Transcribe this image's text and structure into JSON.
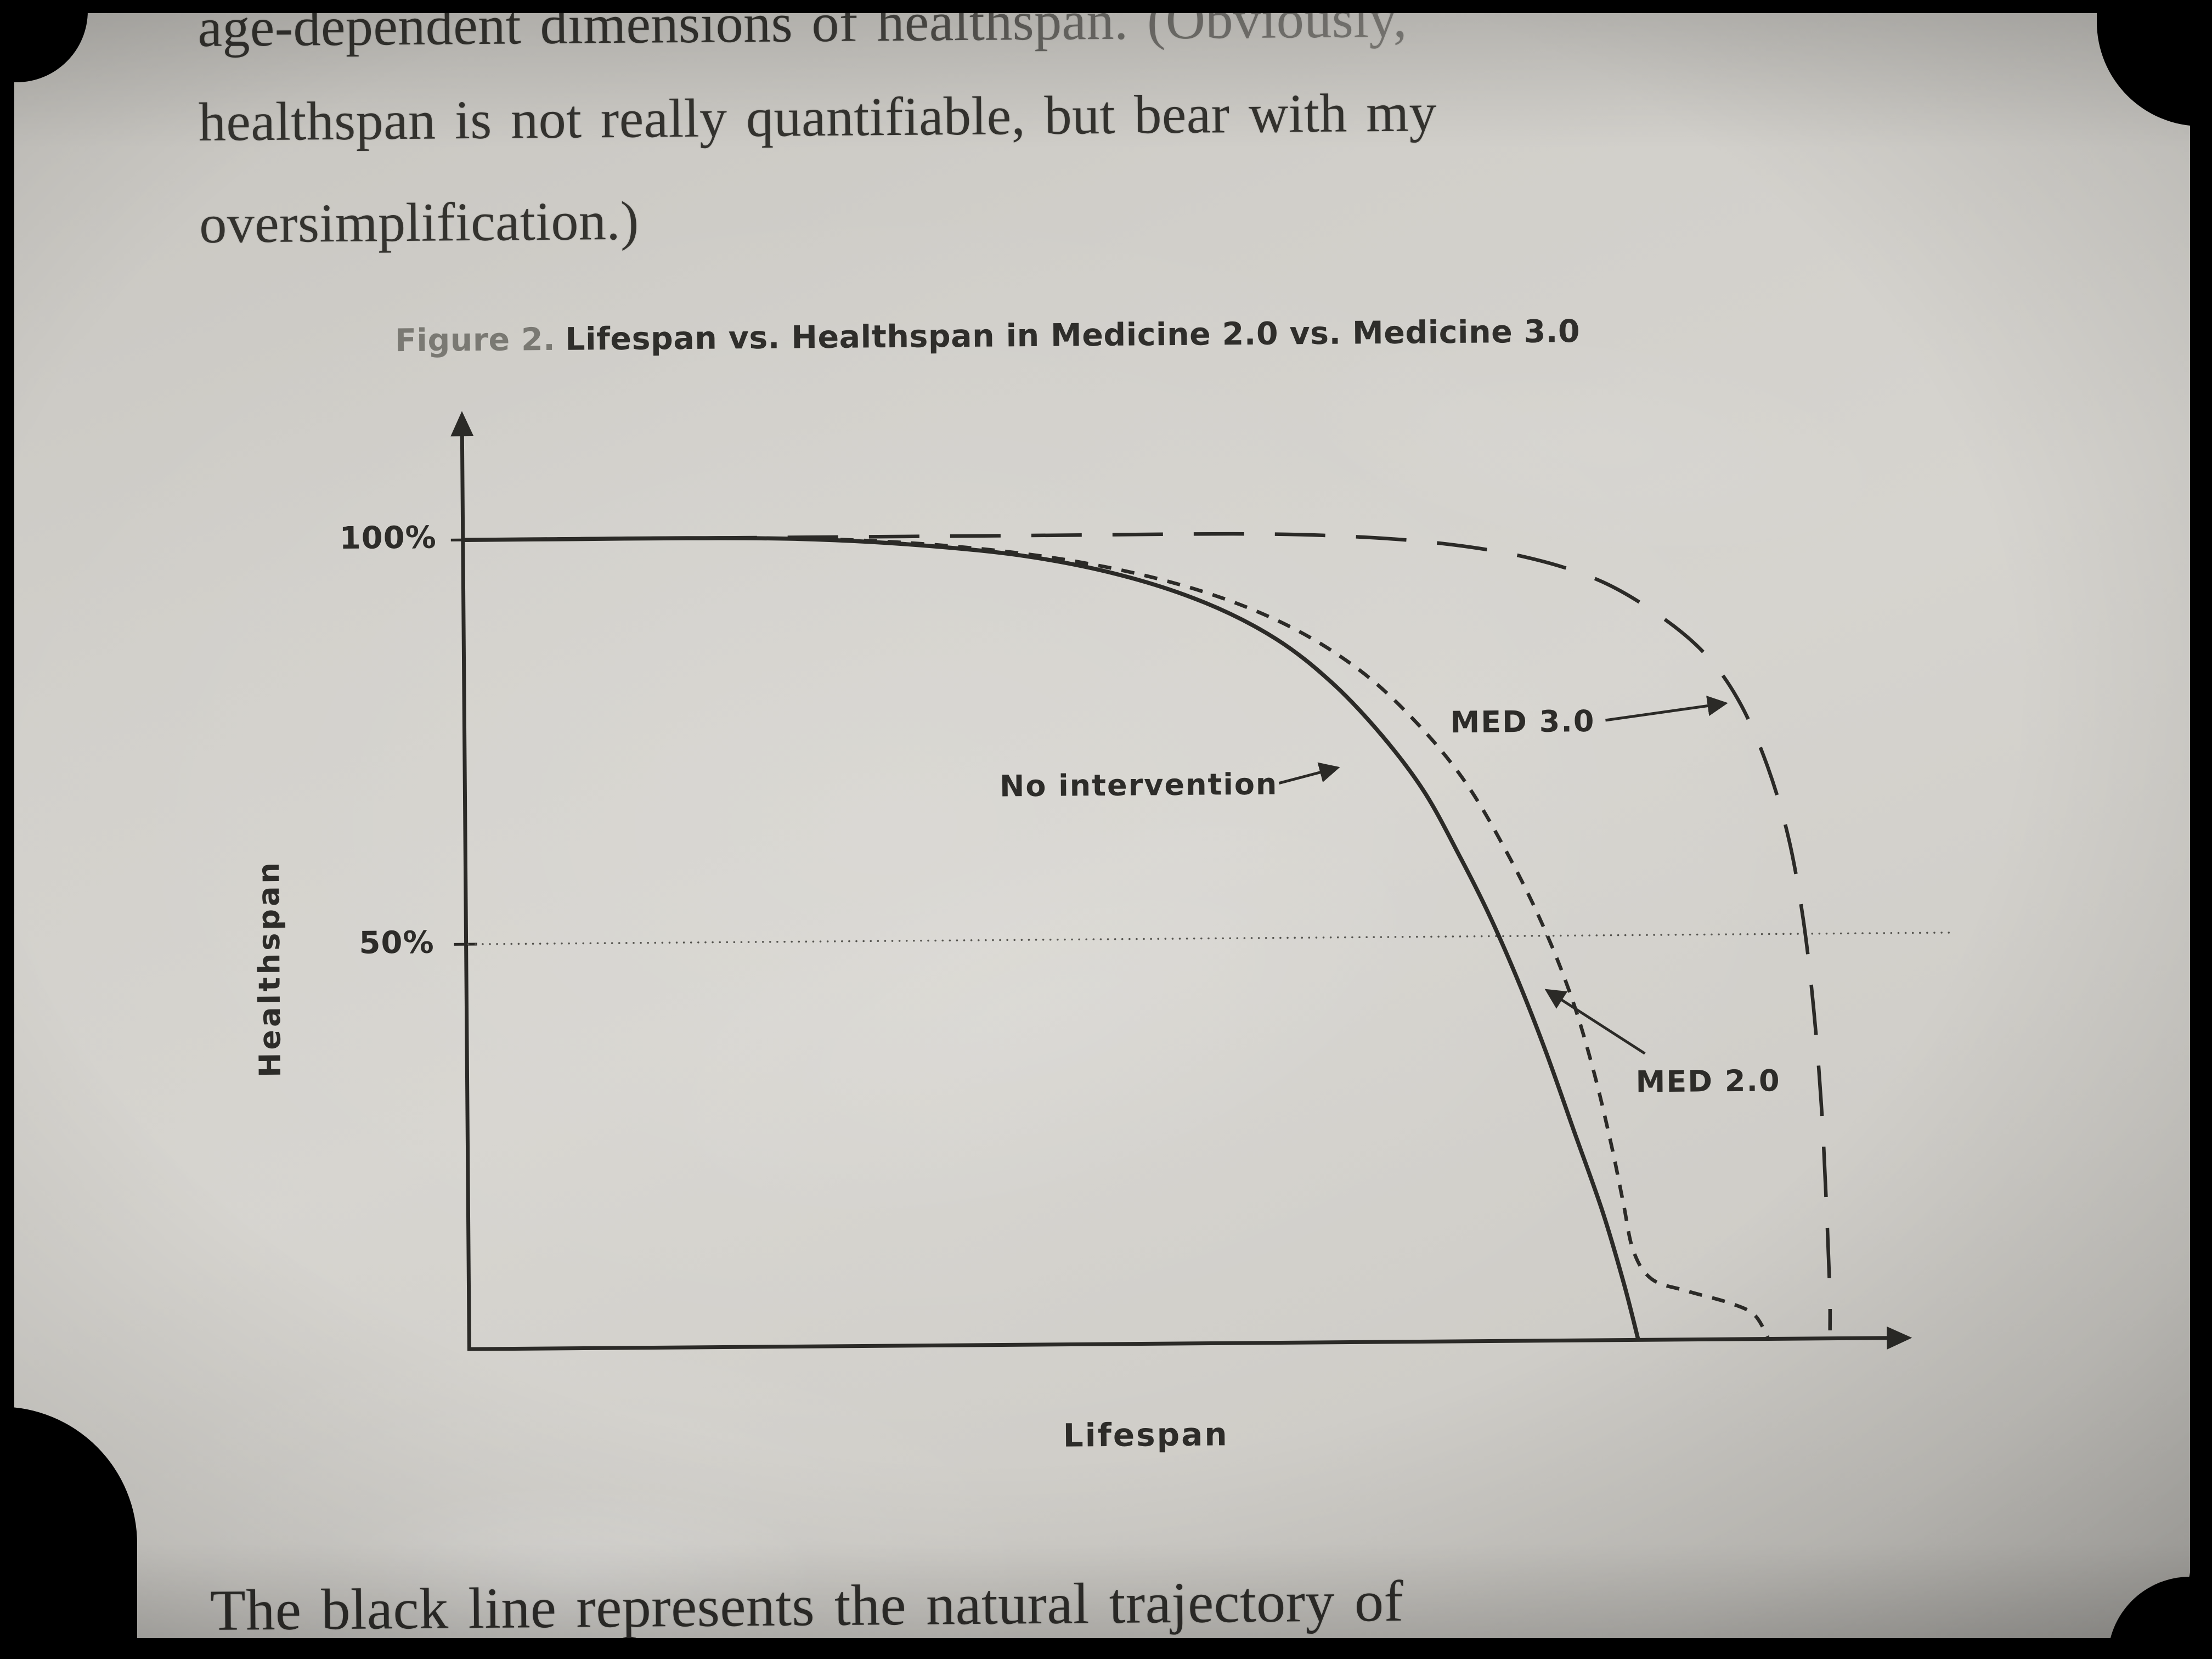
{
  "page": {
    "top_paragraph": {
      "line1": "age-dependent dimensions of healthspan. (Obviously,",
      "line2": "healthspan is not really quantifiable, but bear with my",
      "line3": "oversimplification.)"
    },
    "bottom_paragraph": "The black line represents the natural trajectory of"
  },
  "figure": {
    "caption_prefix": "Figure 2.",
    "caption_text": "Lifespan vs. Healthspan in Medicine 2.0 vs. Medicine 3.0"
  },
  "chart_data": {
    "type": "line",
    "title": "Figure 2. Lifespan vs. Healthspan in Medicine 2.0 vs. Medicine 3.0",
    "xlabel": "Lifespan",
    "ylabel": "Healthspan",
    "ylim": [
      0,
      100
    ],
    "xlim": [
      0,
      1
    ],
    "grid": false,
    "yticks": [
      {
        "value": 100,
        "label": "100%"
      },
      {
        "value": 50,
        "label": "50%"
      }
    ],
    "reference_line": {
      "y": 50,
      "style": "dotted"
    },
    "series": [
      {
        "name": "No intervention",
        "style": "solid",
        "points": [
          [
            0,
            100
          ],
          [
            0.08,
            100
          ],
          [
            0.16,
            100
          ],
          [
            0.24,
            99.8
          ],
          [
            0.32,
            99
          ],
          [
            0.4,
            97.5
          ],
          [
            0.47,
            95
          ],
          [
            0.53,
            91.5
          ],
          [
            0.58,
            87
          ],
          [
            0.62,
            81.5
          ],
          [
            0.655,
            75
          ],
          [
            0.685,
            68
          ],
          [
            0.71,
            60
          ],
          [
            0.73,
            53
          ],
          [
            0.75,
            45
          ],
          [
            0.77,
            36
          ],
          [
            0.79,
            26
          ],
          [
            0.81,
            16
          ],
          [
            0.825,
            7
          ],
          [
            0.835,
            0
          ]
        ]
      },
      {
        "name": "MED 2.0",
        "style": "dashed-short",
        "points": [
          [
            0,
            100
          ],
          [
            0.16,
            100
          ],
          [
            0.28,
            99.6
          ],
          [
            0.38,
            98.2
          ],
          [
            0.46,
            96
          ],
          [
            0.53,
            92.8
          ],
          [
            0.59,
            88.5
          ],
          [
            0.64,
            83
          ],
          [
            0.68,
            76.5
          ],
          [
            0.715,
            69
          ],
          [
            0.745,
            60
          ],
          [
            0.77,
            51
          ],
          [
            0.79,
            42
          ],
          [
            0.805,
            33
          ],
          [
            0.817,
            24
          ],
          [
            0.825,
            17
          ],
          [
            0.832,
            11
          ],
          [
            0.845,
            7.5
          ],
          [
            0.87,
            6
          ],
          [
            0.9,
            4.5
          ],
          [
            0.918,
            3
          ],
          [
            0.928,
            0
          ]
        ]
      },
      {
        "name": "MED 3.0",
        "style": "dashed-long",
        "points": [
          [
            0,
            100
          ],
          [
            0.2,
            100
          ],
          [
            0.4,
            100
          ],
          [
            0.55,
            100
          ],
          [
            0.63,
            99.6
          ],
          [
            0.7,
            98.6
          ],
          [
            0.76,
            96.8
          ],
          [
            0.81,
            94
          ],
          [
            0.85,
            90
          ],
          [
            0.885,
            85
          ],
          [
            0.91,
            79
          ],
          [
            0.93,
            71
          ],
          [
            0.945,
            62
          ],
          [
            0.955,
            52
          ],
          [
            0.962,
            41
          ],
          [
            0.967,
            29
          ],
          [
            0.97,
            17
          ],
          [
            0.972,
            6
          ],
          [
            0.972,
            1
          ]
        ]
      }
    ],
    "annotations": [
      {
        "label": "No intervention",
        "target_series": "No intervention"
      },
      {
        "label": "MED 3.0",
        "target_series": "MED 3.0"
      },
      {
        "label": "MED 2.0",
        "target_series": "MED 2.0"
      }
    ],
    "legend_position": "none"
  },
  "colors": {
    "ink": "#2b2a27",
    "page_background": "#d2d0cb",
    "caption_muted": "#7a7973",
    "reference_line": "#55544f"
  }
}
